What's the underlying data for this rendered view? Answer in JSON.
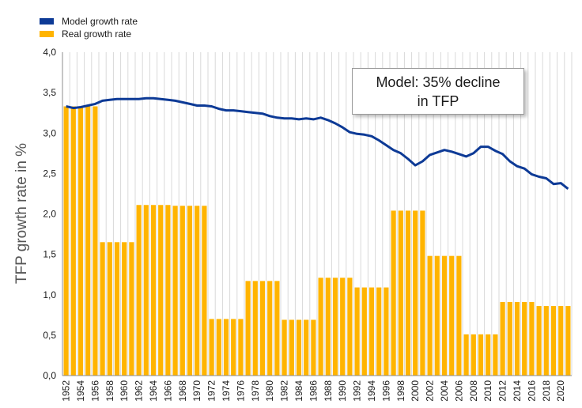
{
  "chart_data": {
    "type": "bar+line",
    "title": "",
    "xlabel": "",
    "ylabel": "TFP growth rate in %",
    "ylim": [
      0,
      4
    ],
    "yticks": [
      "0,0",
      "0,5",
      "1,0",
      "1,5",
      "2,0",
      "2,5",
      "3,0",
      "3,5",
      "4,0"
    ],
    "grid": "vertical",
    "legend_position": "top-left",
    "annotation": {
      "line1": "Model: 35% decline",
      "line2": "in TFP"
    },
    "x": [
      1952,
      1953,
      1954,
      1955,
      1956,
      1957,
      1958,
      1959,
      1960,
      1961,
      1962,
      1963,
      1964,
      1965,
      1966,
      1967,
      1968,
      1969,
      1970,
      1971,
      1972,
      1973,
      1974,
      1975,
      1976,
      1977,
      1978,
      1979,
      1980,
      1981,
      1982,
      1983,
      1984,
      1985,
      1986,
      1987,
      1988,
      1989,
      1990,
      1991,
      1992,
      1993,
      1994,
      1995,
      1996,
      1997,
      1998,
      1999,
      2000,
      2001,
      2002,
      2003,
      2004,
      2005,
      2006,
      2007,
      2008,
      2009,
      2010,
      2011,
      2012,
      2013,
      2014,
      2015,
      2016,
      2017,
      2018,
      2019,
      2020,
      2021
    ],
    "x_tick_labels": [
      "1952",
      "1954",
      "1956",
      "1958",
      "1960",
      "1962",
      "1964",
      "1966",
      "1968",
      "1970",
      "1972",
      "1974",
      "1976",
      "1978",
      "1980",
      "1982",
      "1984",
      "1986",
      "1988",
      "1990",
      "1992",
      "1994",
      "1996",
      "1998",
      "2000",
      "2002",
      "2004",
      "2006",
      "2008",
      "2010",
      "2012",
      "2014",
      "2016",
      "2018",
      "2020"
    ],
    "series": [
      {
        "name": "Model growth rate",
        "type": "line",
        "color": "#0d3a96",
        "values": [
          3.33,
          3.31,
          3.32,
          3.34,
          3.36,
          3.4,
          3.41,
          3.42,
          3.42,
          3.42,
          3.42,
          3.43,
          3.43,
          3.42,
          3.41,
          3.4,
          3.38,
          3.36,
          3.34,
          3.34,
          3.33,
          3.3,
          3.28,
          3.28,
          3.27,
          3.26,
          3.25,
          3.24,
          3.21,
          3.19,
          3.18,
          3.18,
          3.17,
          3.18,
          3.17,
          3.19,
          3.16,
          3.12,
          3.07,
          3.01,
          2.99,
          2.98,
          2.96,
          2.91,
          2.85,
          2.79,
          2.75,
          2.68,
          2.6,
          2.65,
          2.73,
          2.76,
          2.79,
          2.77,
          2.74,
          2.71,
          2.75,
          2.83,
          2.83,
          2.78,
          2.74,
          2.65,
          2.59,
          2.56,
          2.49,
          2.46,
          2.44,
          2.37,
          2.38,
          2.31
        ]
      },
      {
        "name": "Real growth rate",
        "type": "bar",
        "color": "#ffb400",
        "values": [
          3.33,
          3.33,
          3.33,
          3.33,
          3.33,
          1.65,
          1.65,
          1.65,
          1.65,
          1.65,
          2.11,
          2.11,
          2.11,
          2.11,
          2.11,
          2.1,
          2.1,
          2.1,
          2.1,
          2.1,
          0.7,
          0.7,
          0.7,
          0.7,
          0.7,
          1.17,
          1.17,
          1.17,
          1.17,
          1.17,
          0.69,
          0.69,
          0.69,
          0.69,
          0.69,
          1.21,
          1.21,
          1.21,
          1.21,
          1.21,
          1.09,
          1.09,
          1.09,
          1.09,
          1.09,
          2.04,
          2.04,
          2.04,
          2.04,
          2.04,
          1.48,
          1.48,
          1.48,
          1.48,
          1.48,
          0.51,
          0.51,
          0.51,
          0.51,
          0.51,
          0.91,
          0.91,
          0.91,
          0.91,
          0.91,
          0.86,
          0.86,
          0.86,
          0.86,
          0.86
        ]
      }
    ]
  }
}
